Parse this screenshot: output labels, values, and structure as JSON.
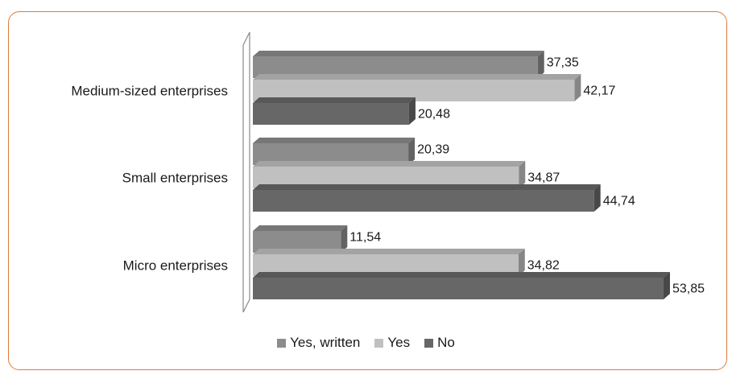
{
  "chart_data": {
    "type": "bar",
    "orientation": "horizontal",
    "style": "3d",
    "categories": [
      "Medium-sized enterprises",
      "Small enterprises",
      "Micro enterprises"
    ],
    "series": [
      {
        "name": "Yes, written",
        "values": [
          37.35,
          20.39,
          11.54
        ],
        "value_labels": [
          "37,35",
          "20,39",
          "11,54"
        ],
        "color": "#8c8c8c"
      },
      {
        "name": "Yes",
        "values": [
          42.17,
          34.87,
          34.82
        ],
        "value_labels": [
          "42,17",
          "34,87",
          "34,82"
        ],
        "color": "#c0c0c0"
      },
      {
        "name": "No",
        "values": [
          20.48,
          44.74,
          53.85
        ],
        "value_labels": [
          "20,48",
          "44,74",
          "53,85"
        ],
        "color": "#676767"
      }
    ],
    "xlim": [
      0,
      60
    ],
    "grid": false,
    "legend_position": "bottom"
  },
  "frame": {
    "border_color": "#e07b39"
  }
}
